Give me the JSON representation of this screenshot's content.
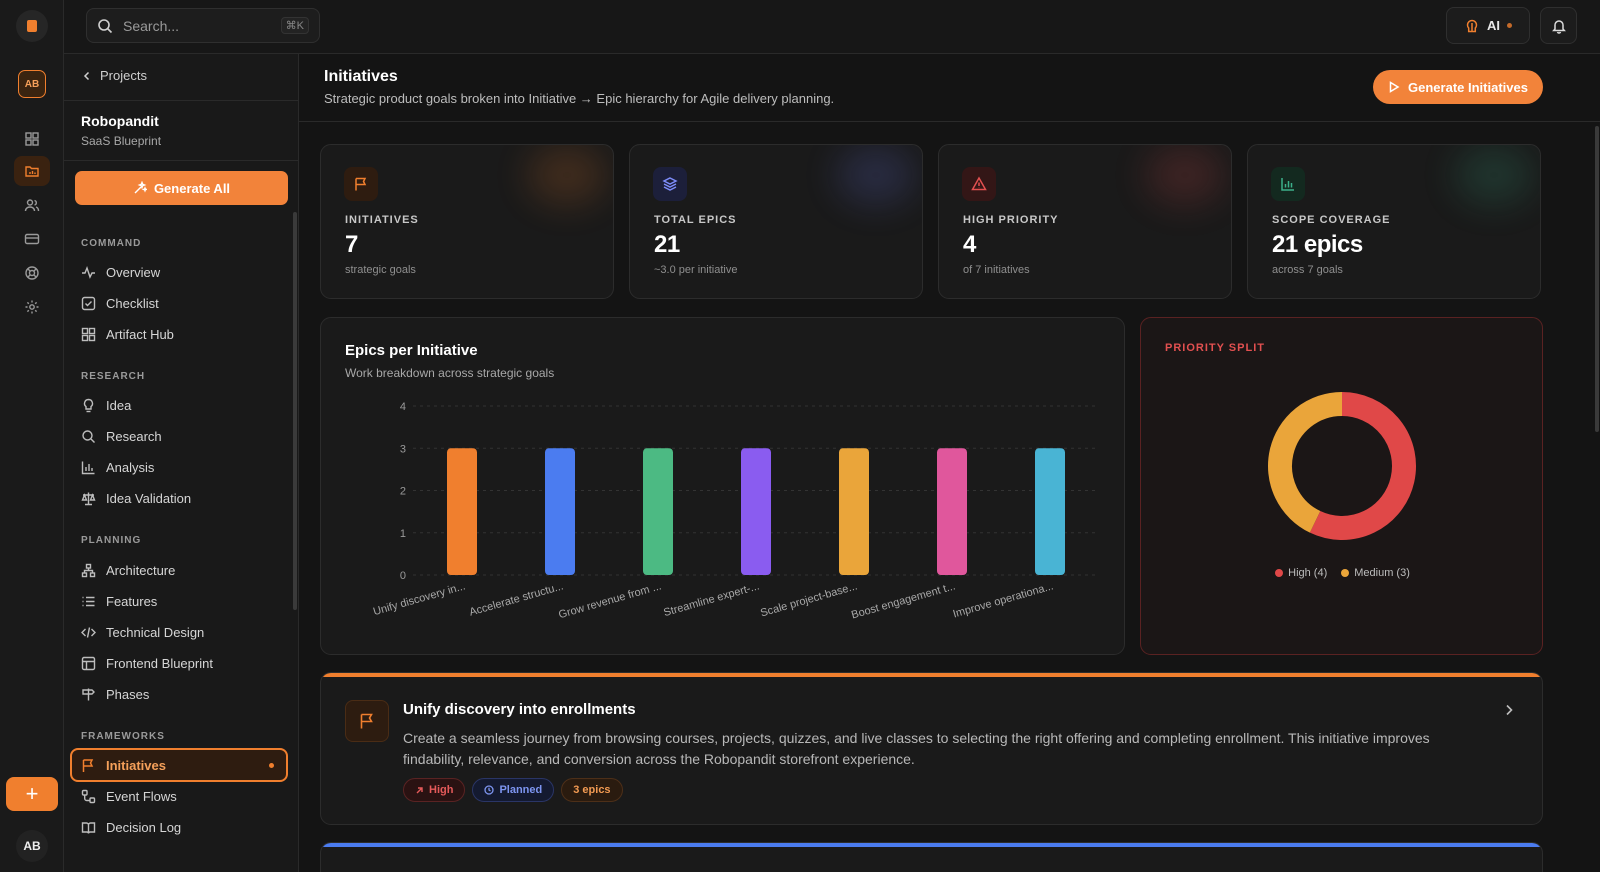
{
  "app": {
    "rail_avatar": "AB",
    "user_initials": "AB"
  },
  "search": {
    "placeholder": "Search...",
    "shortcut": "⌘K"
  },
  "topbar": {
    "ai_label": "AI"
  },
  "sidebar": {
    "back_label": "Projects",
    "project_name": "Robopandit",
    "project_sub": "SaaS Blueprint",
    "generate_all": "Generate All",
    "sections": {
      "command": "COMMAND",
      "research": "RESEARCH",
      "planning": "PLANNING",
      "frameworks": "FRAMEWORKS"
    },
    "items": {
      "overview": "Overview",
      "checklist": "Checklist",
      "artifact_hub": "Artifact Hub",
      "idea": "Idea",
      "research": "Research",
      "analysis": "Analysis",
      "idea_validation": "Idea Validation",
      "architecture": "Architecture",
      "features": "Features",
      "technical_design": "Technical Design",
      "frontend_blueprint": "Frontend Blueprint",
      "phases": "Phases",
      "initiatives": "Initiatives",
      "event_flows": "Event Flows",
      "decision_log": "Decision Log"
    }
  },
  "page": {
    "title": "Initiatives",
    "subtitle": "Strategic product goals broken into Initiative → Epic hierarchy for Agile delivery planning.",
    "generate_button": "Generate Initiatives"
  },
  "stats": [
    {
      "label": "INITIATIVES",
      "value": "7",
      "hint": "strategic goals",
      "icon": "flag-icon",
      "color": "#f07f2e"
    },
    {
      "label": "TOTAL EPICS",
      "value": "21",
      "hint": "~3.0 per initiative",
      "icon": "layers-icon",
      "color": "#6d7cf5"
    },
    {
      "label": "HIGH PRIORITY",
      "value": "4",
      "hint": "of 7 initiatives",
      "icon": "alert-triangle-icon",
      "color": "#e25050"
    },
    {
      "label": "SCOPE COVERAGE",
      "value": "21 epics",
      "hint": "across 7 goals",
      "icon": "bar-chart-icon",
      "color": "#3cb08a"
    }
  ],
  "chart_data": [
    {
      "type": "bar",
      "title": "Epics per Initiative",
      "subtitle": "Work breakdown across strategic goals",
      "categories": [
        "Unify discovery in...",
        "Accelerate structu...",
        "Grow revenue from ...",
        "Streamline expert-...",
        "Scale project-base...",
        "Boost engagement t...",
        "Improve operationa..."
      ],
      "values": [
        3,
        3,
        3,
        3,
        3,
        3,
        3
      ],
      "colors": [
        "#f07f2e",
        "#4b7cf0",
        "#4cba83",
        "#8a5cf0",
        "#eaa53a",
        "#e0579c",
        "#49b4d4"
      ],
      "ylim": [
        0,
        4
      ],
      "yticks": [
        "0",
        "1",
        "2",
        "3",
        "4"
      ],
      "grid": true
    },
    {
      "type": "pie",
      "title": "PRIORITY SPLIT",
      "labels": [
        "High",
        "Medium"
      ],
      "values": [
        4,
        3
      ],
      "legend": [
        "High (4)",
        "Medium (3)"
      ],
      "colors": [
        "#e04848",
        "#eaa53a"
      ]
    }
  ],
  "initiative": {
    "title": "Unify discovery into enrollments",
    "description": "Create a seamless journey from browsing courses, projects, quizzes, and live classes to selecting the right offering and completing enrollment. This initiative improves findability, relevance, and conversion across the Robopandit storefront experience.",
    "tags": {
      "priority": "High",
      "status": "Planned",
      "epics": "3 epics"
    }
  }
}
